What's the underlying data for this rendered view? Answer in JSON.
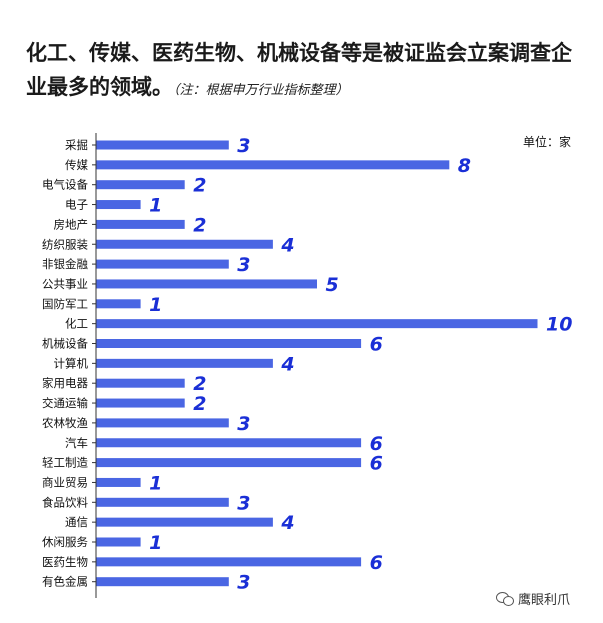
{
  "header": {
    "title": "化工、传媒、医药生物、机械设备等是被证监会立案调查企业最多的领域。",
    "note": "（注：根据申万行业指标整理）"
  },
  "unit_label": "单位：家",
  "watermark": {
    "text": "鹰眼利爪",
    "icon": "wechat-icon"
  },
  "colors": {
    "bar": "#4a66e3",
    "value_label": "#1a2fd6",
    "axis": "#333333"
  },
  "chart_data": {
    "type": "bar",
    "orientation": "horizontal",
    "categories": [
      "采掘",
      "传媒",
      "电气设备",
      "电子",
      "房地产",
      "纺织服装",
      "非银金融",
      "公共事业",
      "国防军工",
      "化工",
      "机械设备",
      "计算机",
      "家用电器",
      "交通运输",
      "农林牧渔",
      "汽车",
      "轻工制造",
      "商业贸易",
      "食品饮料",
      "通信",
      "休闲服务",
      "医药生物",
      "有色金属"
    ],
    "values": [
      3,
      8,
      2,
      1,
      2,
      4,
      3,
      5,
      1,
      10,
      6,
      4,
      2,
      2,
      3,
      6,
      6,
      1,
      3,
      4,
      1,
      6,
      3
    ],
    "xlim": [
      0,
      10
    ],
    "grid": false,
    "legend": "none"
  }
}
